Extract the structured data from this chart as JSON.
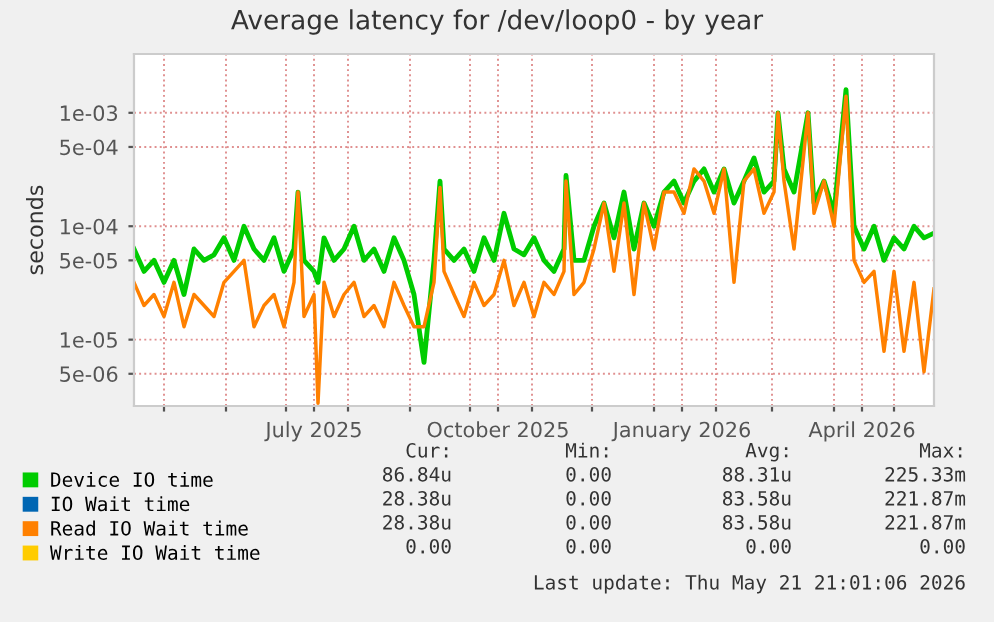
{
  "chart_data": {
    "type": "line",
    "title": "Average latency for /dev/loop0 - by year",
    "ylabel": "seconds",
    "log": "y",
    "grid": true,
    "legend": "bottom",
    "marker": "none",
    "line_style": "solid",
    "xlim": [
      "2025-04-16",
      "2026-05-21"
    ],
    "xticks": [
      {
        "value": "2025-05-01",
        "label": null
      },
      {
        "value": "2025-06-01",
        "label": null
      },
      {
        "value": "2025-07-01",
        "label": null
      },
      {
        "value": "2025-07-15",
        "label": "July 2025"
      },
      {
        "value": "2025-08-01",
        "label": null
      },
      {
        "value": "2025-09-01",
        "label": null
      },
      {
        "value": "2025-10-01",
        "label": null
      },
      {
        "value": "2025-10-15",
        "label": "October 2025"
      },
      {
        "value": "2025-11-01",
        "label": null
      },
      {
        "value": "2025-12-01",
        "label": null
      },
      {
        "value": "2026-01-01",
        "label": null
      },
      {
        "value": "2026-01-15",
        "label": "January 2026"
      },
      {
        "value": "2026-02-01",
        "label": null
      },
      {
        "value": "2026-03-01",
        "label": null
      },
      {
        "value": "2026-04-01",
        "label": null
      },
      {
        "value": "2026-04-15",
        "label": "April 2026"
      },
      {
        "value": "2026-05-01",
        "label": null
      }
    ],
    "ylim": [
      2.6e-06,
      0.0033
    ],
    "yticks": [
      {
        "value": 5e-06,
        "label": "5e-06"
      },
      {
        "value": 1e-05,
        "label": "1e-05"
      },
      {
        "value": 5e-05,
        "label": "5e-05"
      },
      {
        "value": 0.0001,
        "label": "1e-04"
      },
      {
        "value": 0.0005,
        "label": "5e-04"
      },
      {
        "value": 0.001,
        "label": "1e-03"
      }
    ],
    "x": [
      "2025-04-16",
      "2025-04-21",
      "2025-04-26",
      "2025-05-01",
      "2025-05-06",
      "2025-05-11",
      "2025-05-16",
      "2025-05-21",
      "2025-05-26",
      "2025-05-31",
      "2025-06-05",
      "2025-06-10",
      "2025-06-15",
      "2025-06-20",
      "2025-06-25",
      "2025-06-30",
      "2025-07-05",
      "2025-07-07",
      "2025-07-10",
      "2025-07-15",
      "2025-07-17",
      "2025-07-20",
      "2025-07-25",
      "2025-07-30",
      "2025-08-04",
      "2025-08-09",
      "2025-08-14",
      "2025-08-19",
      "2025-08-24",
      "2025-08-29",
      "2025-09-03",
      "2025-09-08",
      "2025-09-13",
      "2025-09-16",
      "2025-09-18",
      "2025-09-23",
      "2025-09-28",
      "2025-10-03",
      "2025-10-08",
      "2025-10-13",
      "2025-10-18",
      "2025-10-23",
      "2025-10-28",
      "2025-11-02",
      "2025-11-07",
      "2025-11-12",
      "2025-11-17",
      "2025-11-18",
      "2025-11-22",
      "2025-11-27",
      "2025-12-02",
      "2025-12-07",
      "2025-12-12",
      "2025-12-17",
      "2025-12-22",
      "2025-12-27",
      "2026-01-01",
      "2026-01-06",
      "2026-01-11",
      "2026-01-16",
      "2026-01-21",
      "2026-01-26",
      "2026-01-31",
      "2026-02-05",
      "2026-02-10",
      "2026-02-15",
      "2026-02-20",
      "2026-02-25",
      "2026-03-02",
      "2026-03-04",
      "2026-03-07",
      "2026-03-12",
      "2026-03-19",
      "2026-03-22",
      "2026-03-27",
      "2026-04-01",
      "2026-04-07",
      "2026-04-11",
      "2026-04-16",
      "2026-04-21",
      "2026-04-26",
      "2026-05-01",
      "2026-05-06",
      "2026-05-11",
      "2026-05-16",
      "2026-05-21"
    ],
    "series": [
      {
        "name": "Device IO time",
        "color": "#00cc00",
        "values": [
          6.3e-05,
          4e-05,
          5e-05,
          3.2e-05,
          5e-05,
          2.5e-05,
          6.3e-05,
          5e-05,
          5.6e-05,
          7.9e-05,
          5e-05,
          0.0001,
          6.3e-05,
          5e-05,
          7.9e-05,
          4e-05,
          6.3e-05,
          0.0002,
          5e-05,
          4e-05,
          3.2e-05,
          7.9e-05,
          5e-05,
          6.3e-05,
          0.0001,
          5e-05,
          6.3e-05,
          4e-05,
          7.9e-05,
          5e-05,
          2.5e-05,
          6.3e-06,
          5e-05,
          0.00025,
          6.3e-05,
          5e-05,
          6.3e-05,
          4e-05,
          7.9e-05,
          5e-05,
          0.00013,
          6.3e-05,
          5.6e-05,
          7.9e-05,
          5e-05,
          4e-05,
          6.3e-05,
          0.00028,
          5e-05,
          5e-05,
          0.0001,
          0.00016,
          7.9e-05,
          0.0002,
          6.3e-05,
          0.00016,
          0.0001,
          0.0002,
          0.00025,
          0.00016,
          0.00025,
          0.00032,
          0.0002,
          0.00032,
          0.00016,
          0.00025,
          0.0004,
          0.0002,
          0.00025,
          0.001,
          0.00032,
          0.0002,
          0.001,
          0.00016,
          0.00025,
          0.00013,
          0.0016,
          0.0001,
          6.3e-05,
          0.0001,
          5e-05,
          7.9e-05,
          6.3e-05,
          0.0001,
          7.9e-05,
          8.7e-05
        ]
      },
      {
        "name": "IO Wait time",
        "color": "#0066b3",
        "values": [
          null,
          null,
          null,
          null,
          null,
          null,
          null,
          null,
          null,
          null,
          null,
          null,
          null,
          null,
          null,
          null,
          null,
          null,
          null,
          null,
          null,
          null,
          null,
          null,
          null,
          null,
          null,
          null,
          null,
          null,
          null,
          null,
          null,
          null,
          null,
          null,
          null,
          null,
          null,
          null,
          null,
          null,
          null,
          null,
          null,
          null,
          null,
          null,
          null,
          null,
          null,
          null,
          null,
          null,
          null,
          null,
          null,
          null,
          null,
          null,
          null,
          null,
          null,
          null,
          null,
          null,
          null,
          null,
          null,
          null,
          null,
          null,
          null,
          null,
          null,
          null,
          null,
          null,
          null,
          null,
          null,
          null,
          null,
          null,
          null,
          null
        ]
      },
      {
        "name": "Read IO Wait time",
        "color": "#ff8000",
        "values": [
          3.2e-05,
          2e-05,
          2.5e-05,
          1.6e-05,
          3.2e-05,
          1.3e-05,
          2.5e-05,
          2e-05,
          1.6e-05,
          3.2e-05,
          4e-05,
          5e-05,
          1.3e-05,
          2e-05,
          2.5e-05,
          1.3e-05,
          3.2e-05,
          0.0002,
          1.6e-05,
          2.5e-05,
          2.75e-06,
          3.2e-05,
          1.6e-05,
          2.5e-05,
          3.2e-05,
          1.6e-05,
          2e-05,
          1.3e-05,
          3.2e-05,
          2e-05,
          1.3e-05,
          1.3e-05,
          3.2e-05,
          0.00022,
          4e-05,
          2.5e-05,
          1.6e-05,
          3.2e-05,
          2e-05,
          2.5e-05,
          5e-05,
          2e-05,
          3.2e-05,
          1.6e-05,
          3.2e-05,
          2.5e-05,
          4e-05,
          0.00025,
          2.5e-05,
          3.2e-05,
          6.3e-05,
          0.00016,
          4e-05,
          0.00016,
          2.5e-05,
          0.00016,
          6.3e-05,
          0.0002,
          0.0002,
          0.00013,
          0.00032,
          0.00025,
          0.00013,
          0.00032,
          3.2e-05,
          0.00025,
          0.00032,
          0.00013,
          0.0002,
          0.001,
          0.00025,
          6.3e-05,
          0.001,
          0.00013,
          0.00025,
          0.0001,
          0.0014,
          5e-05,
          3.2e-05,
          4e-05,
          7.9e-06,
          4e-05,
          7.9e-06,
          3.2e-05,
          5.2e-06,
          2.8e-05
        ]
      },
      {
        "name": "Write IO Wait time",
        "color": "#ffcc00",
        "values": [
          null,
          null,
          null,
          null,
          null,
          null,
          null,
          null,
          null,
          null,
          null,
          null,
          null,
          null,
          null,
          null,
          null,
          null,
          null,
          null,
          null,
          null,
          null,
          null,
          null,
          null,
          null,
          null,
          null,
          null,
          null,
          null,
          null,
          null,
          null,
          null,
          null,
          null,
          null,
          null,
          null,
          null,
          null,
          null,
          null,
          null,
          null,
          null,
          null,
          null,
          null,
          null,
          null,
          null,
          null,
          null,
          null,
          null,
          null,
          null,
          null,
          null,
          null,
          null,
          null,
          null,
          null,
          null,
          null,
          null,
          null,
          null,
          null,
          null,
          null,
          null,
          null,
          null,
          null,
          null,
          null,
          null,
          null,
          null,
          null,
          null
        ]
      }
    ],
    "annotations": [
      "Cur:",
      "Min:",
      "Avg:",
      "Max:",
      "86.84u",
      "0.00",
      "88.31u",
      "225.33m",
      "28.38u",
      "0.00",
      "83.58u",
      "221.87m",
      "28.38u",
      "0.00",
      "83.58u",
      "221.87m",
      "0.00",
      "0.00",
      "0.00",
      "0.00",
      "Last update: Thu May 21 21:01:06 2026"
    ]
  }
}
